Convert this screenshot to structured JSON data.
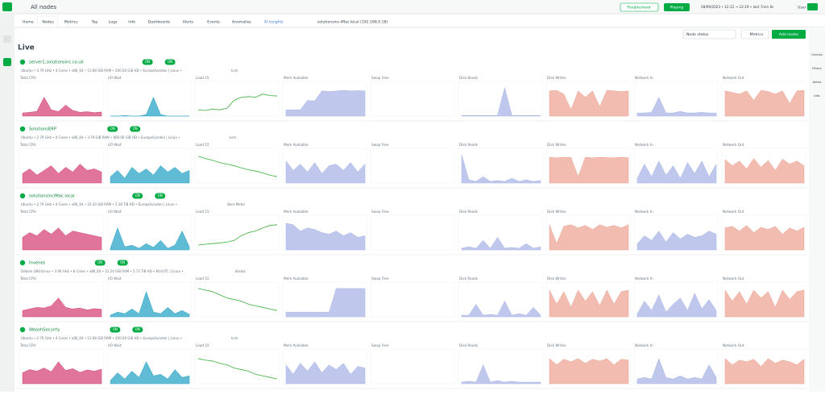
{
  "top_bar": {
    "space": "All nodes",
    "troubleshoot": "Troubleshoot",
    "playing": "Playing",
    "time_range": "28/09/2023 • 12:12 → 12:19 • last 7min 6s",
    "user": "User"
  },
  "tabs": [
    "Home",
    "Nodes",
    "Metrics",
    "Top",
    "Logs",
    "Info",
    "Dashboards",
    "Alerts",
    "Events",
    "Anomalies",
    "AI insights",
    "solutionsinc-iMac.local (192.168.0.18)"
  ],
  "toolbar": {
    "filter": "Node status",
    "metrics": "Metrics",
    "add": "Add nodes"
  },
  "section_title": "Live",
  "right_panel": [
    "Checks",
    "Filters",
    "Alerts",
    "Info"
  ],
  "chart_data": {
    "type": "area",
    "ylim": [
      0,
      100
    ],
    "metrics": [
      {
        "title": "Total CPU",
        "color": "#d6457a",
        "kind": "area"
      },
      {
        "title": "I/O Wait",
        "color": "#2ba4c7",
        "kind": "area"
      },
      {
        "title": "Load 15",
        "color": "#3bae3b",
        "kind": "line"
      },
      {
        "title": "Mem Available",
        "color": "#aab6e6",
        "kind": "area"
      },
      {
        "title": "Swap Free",
        "color": "#aab6e6",
        "kind": "area"
      },
      {
        "title": "Disk Reads",
        "color": "#aab6e6",
        "kind": "area"
      },
      {
        "title": "Disk Writes",
        "color": "#eea596",
        "kind": "area"
      },
      {
        "title": "Network In",
        "color": "#aab6e6",
        "kind": "area"
      },
      {
        "title": "Network Out",
        "color": "#eea596",
        "kind": "area"
      }
    ],
    "badge": "ON",
    "nodes": [
      {
        "name": "server1.solutionsinc.co.uk",
        "info": "Ubuntu • 3.79 GHz • 4 Cores • x86_64 • 11.68 GiB RAM • 200.00 GiB HD • Europe/London | Linux •",
        "virtualization": "kvm",
        "series": [
          [
            10,
            12,
            15,
            60,
            20,
            14,
            35,
            18,
            12,
            14,
            11,
            13
          ],
          [
            0,
            0,
            2,
            0,
            0,
            5,
            60,
            5,
            0,
            0,
            0,
            0
          ],
          [
            20,
            18,
            22,
            20,
            25,
            50,
            60,
            62,
            60,
            70,
            65,
            64
          ],
          [
            20,
            20,
            20,
            50,
            48,
            80,
            78,
            80,
            82,
            80,
            81,
            80
          ],
          [],
          [
            2,
            2,
            2,
            2,
            2,
            2,
            90,
            2,
            2,
            2,
            2,
            2
          ],
          [
            80,
            82,
            70,
            20,
            80,
            60,
            80,
            30,
            82,
            80,
            78,
            80
          ],
          [
            10,
            10,
            12,
            60,
            10,
            10,
            15,
            10,
            10,
            12,
            10,
            10
          ],
          [
            80,
            75,
            70,
            80,
            50,
            82,
            78,
            70,
            80,
            40,
            80,
            82
          ]
        ]
      },
      {
        "name": "SolutionsERP",
        "info": "Ubuntu • 2.79 GHz • 4 Cores • x86_64 • 3.79 GiB RAM • 800.00 GiB HD • Europe/London | Linux •",
        "virtualization": "kvm",
        "series": [
          [
            30,
            45,
            25,
            40,
            55,
            30,
            50,
            35,
            60,
            40,
            45,
            35
          ],
          [
            20,
            40,
            15,
            50,
            30,
            45,
            25,
            55,
            35,
            50,
            30,
            40
          ],
          [
            85,
            78,
            72,
            65,
            60,
            55,
            48,
            42,
            38,
            32,
            25,
            20
          ],
          [
            70,
            40,
            60,
            35,
            65,
            30,
            55,
            60,
            40,
            65,
            35,
            60
          ],
          [],
          [
            90,
            10,
            5,
            20,
            5,
            8,
            5,
            15,
            5,
            10,
            5,
            8
          ],
          [
            82,
            80,
            82,
            81,
            20,
            82,
            80,
            82,
            81,
            80,
            82,
            80
          ],
          [
            15,
            60,
            20,
            70,
            25,
            55,
            15,
            65,
            30,
            70,
            20,
            60
          ],
          [
            75,
            55,
            70,
            45,
            78,
            50,
            72,
            40,
            76,
            60,
            70,
            55
          ]
        ]
      },
      {
        "name": "solutionsinciMac.local",
        "info": "Ubuntu • 2.79 GHz • 4 Cores • x86_64 • 22.43 GiB RAM • 5.38 TiB HD • Europe/London | Linux •",
        "virtualization": "Bare Metal",
        "series": [
          [
            40,
            55,
            45,
            65,
            50,
            70,
            45,
            60,
            55,
            50,
            45,
            40
          ],
          [
            5,
            70,
            10,
            15,
            5,
            20,
            8,
            30,
            5,
            15,
            60,
            10
          ],
          [
            15,
            18,
            20,
            22,
            25,
            30,
            45,
            55,
            60,
            70,
            78,
            80
          ],
          [
            85,
            80,
            60,
            70,
            65,
            55,
            50,
            60,
            45,
            55,
            40,
            45
          ],
          [],
          [
            5,
            10,
            5,
            30,
            5,
            40,
            5,
            8,
            5,
            20,
            5,
            10
          ],
          [
            80,
            20,
            75,
            80,
            70,
            78,
            65,
            80,
            72,
            78,
            70,
            80
          ],
          [
            20,
            45,
            30,
            60,
            25,
            55,
            35,
            50,
            40,
            45,
            60,
            50
          ],
          [
            70,
            75,
            60,
            78,
            55,
            72,
            65,
            75,
            50,
            70,
            60,
            72
          ]
        ]
      },
      {
        "name": "Invenes",
        "info": "Debian GNU/Linux • 3.90 GHz • 8 Cores • x86_64 • 31.24 GiB RAM • 5.73 TiB HD • Etc/UTC | Linux •",
        "virtualization": "docker",
        "series": [
          [
            20,
            25,
            30,
            28,
            35,
            60,
            30,
            25,
            28,
            22,
            26,
            24
          ],
          [
            5,
            15,
            10,
            25,
            10,
            80,
            15,
            10,
            30,
            10,
            20,
            8
          ],
          [
            90,
            85,
            80,
            70,
            60,
            55,
            50,
            40,
            35,
            30,
            25,
            20
          ],
          [
            15,
            15,
            15,
            15,
            15,
            15,
            15,
            90,
            90,
            90,
            90,
            90
          ],
          [],
          [
            5,
            5,
            40,
            5,
            8,
            5,
            50,
            5,
            10,
            5,
            30,
            5
          ],
          [
            85,
            40,
            80,
            30,
            85,
            50,
            80,
            35,
            85,
            40,
            80,
            85
          ],
          [
            10,
            50,
            20,
            70,
            15,
            40,
            60,
            20,
            75,
            25,
            55,
            20
          ],
          [
            85,
            50,
            80,
            40,
            85,
            60,
            80,
            30,
            85,
            55,
            80,
            85
          ]
        ]
      },
      {
        "name": "WeashSecurity",
        "info": "Ubuntu • 2.79 GHz • 4 Cores • x86_64 • 11.68 GiB RAM • 200.00 GiB HD • Europe/London | Linux •",
        "virtualization": "kvm",
        "series": [
          [
            35,
            45,
            40,
            50,
            38,
            70,
            42,
            48,
            36,
            44,
            40,
            46
          ],
          [
            10,
            35,
            15,
            40,
            20,
            70,
            25,
            30,
            15,
            45,
            20,
            25
          ],
          [
            80,
            75,
            72,
            65,
            60,
            50,
            45,
            40,
            30,
            25,
            20,
            15
          ],
          [
            60,
            30,
            65,
            40,
            70,
            35,
            60,
            45,
            65,
            30,
            55,
            50
          ],
          [],
          [
            5,
            8,
            5,
            60,
            5,
            10,
            5,
            8,
            5,
            5,
            5,
            5
          ],
          [
            80,
            60,
            78,
            70,
            80,
            65,
            78,
            72,
            80,
            60,
            78,
            75
          ],
          [
            15,
            20,
            15,
            80,
            20,
            15,
            25,
            15,
            20,
            15,
            60,
            20
          ],
          [
            80,
            60,
            75,
            70,
            78,
            55,
            80,
            65,
            75,
            70,
            60,
            78
          ]
        ]
      }
    ]
  }
}
